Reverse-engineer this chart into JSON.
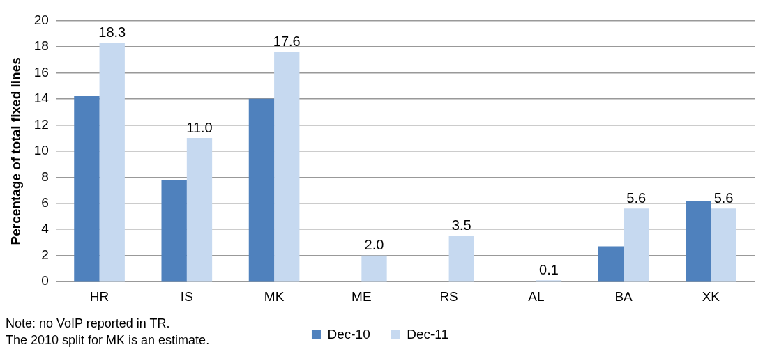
{
  "chart_data": {
    "type": "bar",
    "ylabel": "Percentage of total fixed lines",
    "categories": [
      "HR",
      "IS",
      "MK",
      "ME",
      "RS",
      "AL",
      "BA",
      "XK"
    ],
    "series": [
      {
        "name": "Dec-10",
        "color": "#4f81bd",
        "values": [
          14.2,
          7.8,
          14.0,
          null,
          null,
          null,
          2.7,
          6.2
        ]
      },
      {
        "name": "Dec-11",
        "color": "#c6d9f0",
        "values": [
          18.3,
          11.0,
          17.6,
          2.0,
          3.5,
          0.1,
          5.6,
          5.6
        ],
        "value_labels": [
          "18.3",
          "11.0",
          "17.6",
          "2.0",
          "3.5",
          "0.1",
          "5.6",
          "5.6"
        ]
      }
    ],
    "ylim": [
      0,
      20
    ],
    "yticks": [
      0,
      2,
      4,
      6,
      8,
      10,
      12,
      14,
      16,
      18,
      20
    ],
    "grid": "y",
    "legend": "bottom",
    "annotations": [
      "Note: no VoIP reported in TR.",
      "The 2010 split for MK is  an estimate."
    ]
  }
}
